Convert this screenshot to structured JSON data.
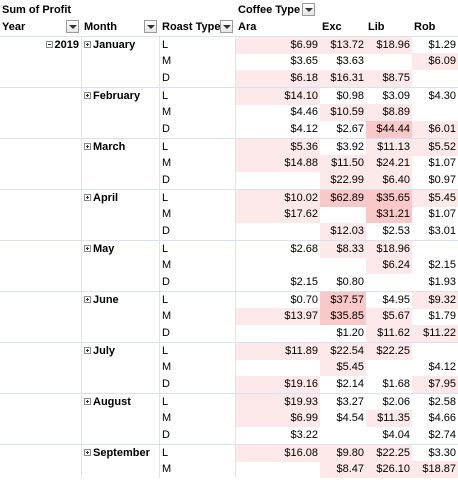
{
  "header": {
    "measure_label": "Sum of Profit",
    "col_field_label": "Coffee Type",
    "year_label": "Year",
    "month_label": "Month",
    "roast_label": "Roast Type",
    "col_items": [
      "Ara",
      "Exc",
      "Lib",
      "Rob"
    ]
  },
  "year": "2019",
  "months": [
    {
      "name": "January",
      "rows": [
        {
          "roast": "L",
          "values": [
            "$6.99",
            "$13.72",
            "$18.96",
            "$1.29"
          ]
        },
        {
          "roast": "M",
          "values": [
            "$3.65",
            "$3.63",
            "",
            "$6.09"
          ]
        },
        {
          "roast": "D",
          "values": [
            "$6.18",
            "$16.31",
            "$8.75",
            ""
          ]
        }
      ]
    },
    {
      "name": "February",
      "rows": [
        {
          "roast": "L",
          "values": [
            "$14.10",
            "$0.98",
            "$3.09",
            "$4.30"
          ]
        },
        {
          "roast": "M",
          "values": [
            "$4.46",
            "$10.59",
            "$8.89",
            ""
          ]
        },
        {
          "roast": "D",
          "values": [
            "$4.12",
            "$2.67",
            "$44.44",
            "$6.01"
          ]
        }
      ]
    },
    {
      "name": "March",
      "rows": [
        {
          "roast": "L",
          "values": [
            "$5.36",
            "$3.92",
            "$11.13",
            "$5.52"
          ]
        },
        {
          "roast": "M",
          "values": [
            "$14.88",
            "$11.50",
            "$24.21",
            "$1.07"
          ]
        },
        {
          "roast": "D",
          "values": [
            "",
            "$22.99",
            "$6.40",
            "$0.97"
          ]
        }
      ]
    },
    {
      "name": "April",
      "rows": [
        {
          "roast": "L",
          "values": [
            "$10.02",
            "$62.89",
            "$35.65",
            "$5.45"
          ]
        },
        {
          "roast": "M",
          "values": [
            "$17.62",
            "",
            "$31.21",
            "$1.07"
          ]
        },
        {
          "roast": "D",
          "values": [
            "",
            "$12.03",
            "$2.53",
            "$3.01"
          ]
        }
      ]
    },
    {
      "name": "May",
      "rows": [
        {
          "roast": "L",
          "values": [
            "$2.68",
            "$8.33",
            "$18.96",
            ""
          ]
        },
        {
          "roast": "M",
          "values": [
            "",
            "",
            "$6.24",
            "$2.15"
          ]
        },
        {
          "roast": "D",
          "values": [
            "$2.15",
            "$0.80",
            "",
            "$1.93"
          ]
        }
      ]
    },
    {
      "name": "June",
      "rows": [
        {
          "roast": "L",
          "values": [
            "$0.70",
            "$37.57",
            "$4.95",
            "$9.32"
          ]
        },
        {
          "roast": "M",
          "values": [
            "$13.97",
            "$35.85",
            "$5.67",
            "$1.79"
          ]
        },
        {
          "roast": "D",
          "values": [
            "",
            "$1.20",
            "$11.62",
            "$11.22"
          ]
        }
      ]
    },
    {
      "name": "July",
      "rows": [
        {
          "roast": "L",
          "values": [
            "$11.89",
            "$22.54",
            "$22.25",
            ""
          ]
        },
        {
          "roast": "M",
          "values": [
            "",
            "$5.45",
            "",
            "$4.12"
          ]
        },
        {
          "roast": "D",
          "values": [
            "$19.16",
            "$2.14",
            "$1.68",
            "$7.95"
          ]
        }
      ]
    },
    {
      "name": "August",
      "rows": [
        {
          "roast": "L",
          "values": [
            "$19.93",
            "$3.27",
            "$2.06",
            "$2.58"
          ]
        },
        {
          "roast": "M",
          "values": [
            "$6.99",
            "$4.54",
            "$11.35",
            "$4.66"
          ]
        },
        {
          "roast": "D",
          "values": [
            "$3.22",
            "",
            "$4.04",
            "$2.74"
          ]
        }
      ]
    },
    {
      "name": "September",
      "rows": [
        {
          "roast": "L",
          "values": [
            "$16.08",
            "$9.80",
            "$22.25",
            "$3.30"
          ]
        },
        {
          "roast": "M",
          "values": [
            "",
            "$8.47",
            "$26.10",
            "$18.87"
          ]
        }
      ]
    }
  ]
}
